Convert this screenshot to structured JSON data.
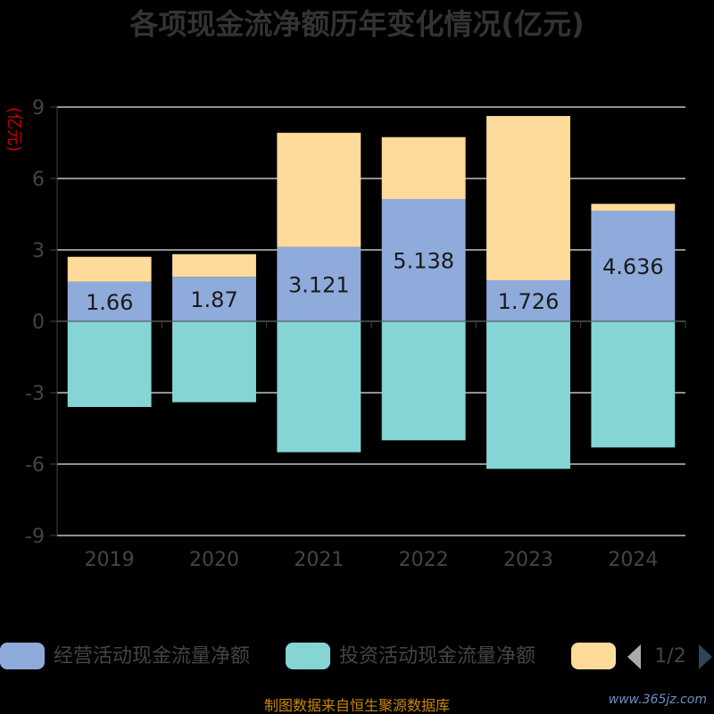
{
  "chart_data": {
    "type": "bar",
    "stacked": true,
    "title": "各项现金流净额历年变化情况(亿元)",
    "ylabel": "(亿元)",
    "categories": [
      "2019",
      "2020",
      "2021",
      "2022",
      "2023",
      "2024"
    ],
    "ylim": [
      -9,
      9
    ],
    "yticks": [
      9,
      6,
      3,
      0,
      -3,
      -6,
      -9
    ],
    "grid": true,
    "legend_position": "bottom",
    "series": [
      {
        "name": "经营活动现金流量净额",
        "color": "#8fabdb",
        "values": [
          1.66,
          1.87,
          3.121,
          5.138,
          1.726,
          4.636
        ],
        "labels": [
          "1.66",
          "1.87",
          "3.121",
          "5.138",
          "1.726",
          "4.636"
        ]
      },
      {
        "name": "投资活动现金流量净额",
        "color": "#86d5d5",
        "values": [
          -3.6,
          -3.4,
          -5.5,
          -5.0,
          -6.2,
          -5.3
        ]
      },
      {
        "name": "",
        "color": "#fedb9b",
        "values": [
          1.05,
          0.95,
          4.8,
          2.6,
          6.9,
          0.3
        ]
      }
    ],
    "legend_page": "1/2"
  },
  "footer": "制图数据来自恒生聚源数据库",
  "watermark": "www.365jz.com"
}
